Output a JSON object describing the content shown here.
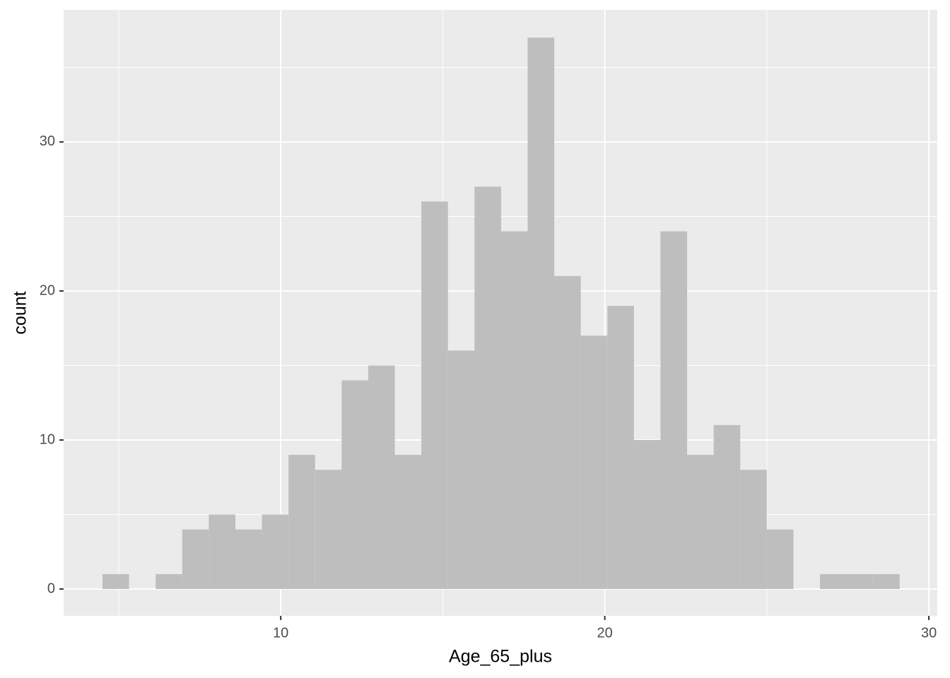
{
  "chart_data": {
    "type": "histogram",
    "x_label": "Age_65_plus",
    "y_label": "count",
    "bins": [
      4.5,
      5.32,
      6.14,
      6.96,
      7.78,
      8.6,
      9.42,
      10.24,
      11.06,
      11.88,
      12.7,
      13.52,
      14.34,
      15.16,
      15.98,
      16.8,
      17.62,
      18.44,
      19.26,
      20.08,
      20.9,
      21.72,
      22.54,
      23.36,
      24.18,
      25.0,
      25.82,
      26.64,
      27.46,
      28.28,
      29.1
    ],
    "values": [
      1,
      0,
      1,
      4,
      5,
      4,
      5,
      9,
      8,
      14,
      15,
      9,
      26,
      16,
      27,
      24,
      37,
      21,
      17,
      19,
      10,
      24,
      9,
      11,
      8,
      4,
      0,
      1,
      1,
      1
    ],
    "color": "#bebebe",
    "xlim": [
      3.3,
      30.26
    ],
    "ylim": [
      -1.8,
      38.86
    ],
    "xticks": [
      10,
      20,
      30
    ],
    "yticks": [
      0,
      10,
      20,
      30
    ],
    "xminor": [
      5,
      15,
      25
    ],
    "yminor": [
      5,
      15,
      25,
      35
    ],
    "grid": true
  }
}
